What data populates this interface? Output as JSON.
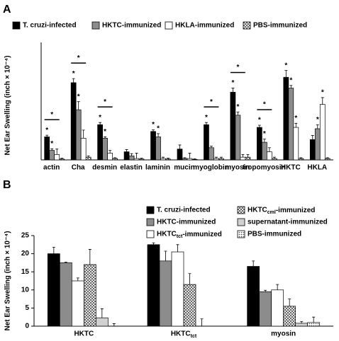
{
  "chart_data": [
    {
      "type": "bar",
      "panel_label": "A",
      "y_label": "Net Ear Swelling (inch × 10⁻⁴)",
      "categories": [
        "actin",
        "Cha",
        "desmin",
        "elastin",
        "laminin",
        "mucin",
        "myoglobin",
        "myosin",
        "tropomyosin",
        "HKTC",
        "HKLA"
      ],
      "ylim": [
        0,
        35
      ],
      "series": [
        {
          "name": "T. cruzi-infected",
          "color": "#000000",
          "hatch": "none",
          "values": [
            8.5,
            28.5,
            13,
            3,
            10.5,
            4,
            13,
            25,
            12,
            30.5,
            7.5
          ],
          "errors": [
            0.6,
            1.5,
            0.8,
            0.8,
            0.6,
            1.5,
            0.8,
            1.5,
            0.8,
            2.5,
            1.5
          ],
          "marks": [
            "*",
            "*",
            "*",
            null,
            "*",
            null,
            "*",
            "*",
            "*",
            "*",
            null
          ]
        },
        {
          "name": "HKTC-immunized",
          "color": "#8c8c8c",
          "hatch": "none",
          "values": [
            3.5,
            18.5,
            8,
            1.5,
            8.5,
            0.5,
            4.5,
            16.5,
            6.5,
            26.5,
            11.5
          ],
          "errors": [
            0.6,
            3,
            0.5,
            0.8,
            1.2,
            0.3,
            0.6,
            1.2,
            1.2,
            1,
            1.5
          ],
          "marks": [
            "*",
            "*",
            "*",
            null,
            "*",
            null,
            null,
            "*",
            "*",
            "*",
            "*"
          ]
        },
        {
          "name": "HKLA-immunized",
          "color": "#ffffff",
          "hatch": "none",
          "values": [
            2,
            8,
            2.5,
            0.5,
            0.5,
            0.5,
            0.5,
            1,
            3,
            12,
            20.5
          ],
          "errors": [
            2,
            3,
            1,
            2,
            0.5,
            2,
            0.5,
            1,
            1.5,
            1.5,
            2.5
          ],
          "marks": [
            null,
            null,
            null,
            null,
            null,
            null,
            null,
            null,
            null,
            "*",
            "*"
          ]
        },
        {
          "name": "PBS-immunized",
          "color": "#ffffff",
          "hatch": "cross",
          "values": [
            0.3,
            1,
            0.5,
            0.3,
            0.3,
            0.2,
            0.5,
            1,
            0.5,
            0.5,
            0.5
          ],
          "errors": [
            0.3,
            0.5,
            0.3,
            0.3,
            0.3,
            0.2,
            0.5,
            1,
            0.5,
            0.3,
            0.3
          ],
          "marks": [
            null,
            null,
            null,
            null,
            null,
            null,
            null,
            null,
            null,
            null,
            null
          ]
        }
      ],
      "brackets": [
        "*",
        "*",
        "*",
        null,
        null,
        null,
        "*",
        "*",
        "*",
        null,
        null
      ]
    },
    {
      "type": "bar",
      "panel_label": "B",
      "y_label": "Net Ear Swelling (inch × 10⁻⁴)",
      "categories": [
        "HKTC",
        "HKTC_tct",
        "myosin"
      ],
      "ylim": [
        0,
        25
      ],
      "yticks": [
        0,
        5,
        10,
        15,
        20,
        25
      ],
      "series": [
        {
          "name": "T. cruzi-infected",
          "color": "#000000",
          "hatch": "none",
          "values": [
            20,
            22.5,
            16.5
          ],
          "errors": [
            1.8,
            0.5,
            1.5
          ]
        },
        {
          "name": "HKTC-immunized",
          "color": "#8c8c8c",
          "hatch": "none",
          "values": [
            17.5,
            18,
            9.5
          ],
          "errors": [
            0.2,
            2.7,
            0.4
          ]
        },
        {
          "name": "HKTC_tct-immunized",
          "color": "#ffffff",
          "hatch": "none",
          "values": [
            12.5,
            20.5,
            10
          ],
          "errors": [
            0.8,
            2,
            1.5
          ]
        },
        {
          "name": "HKTC_cml-immunized",
          "color": "#ffffff",
          "hatch": "cross",
          "values": [
            17,
            11.5,
            5.5
          ],
          "errors": [
            4.2,
            3,
            2
          ]
        },
        {
          "name": "supernatant-immunized",
          "color": "#d0d0d0",
          "hatch": "none",
          "values": [
            2.3,
            0,
            0.8
          ],
          "errors": [
            2.5,
            2,
            0.5
          ]
        },
        {
          "name": "PBS-immunized",
          "color": "#ffffff",
          "hatch": "dots",
          "values": [
            0,
            0,
            1
          ],
          "errors": [
            0.7,
            0,
            1.5
          ]
        }
      ]
    }
  ]
}
